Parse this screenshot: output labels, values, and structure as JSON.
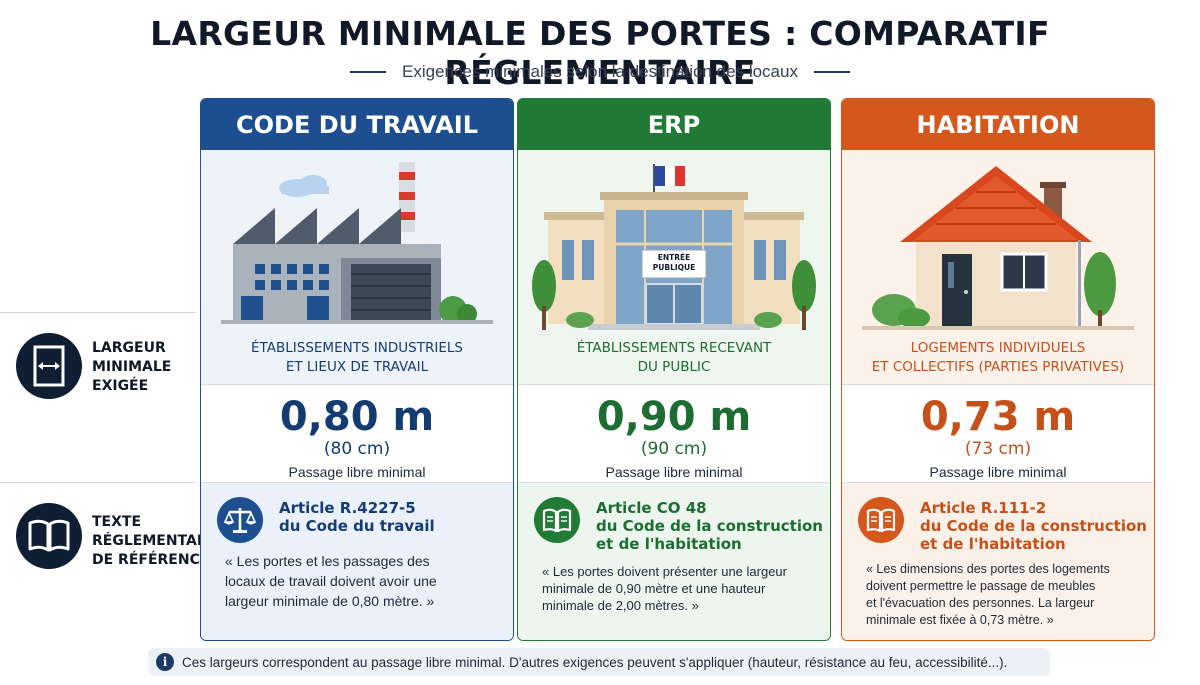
{
  "header": {
    "title": "LARGEUR MINIMALE DES PORTES : COMPARATIF RÉGLEMENTAIRE",
    "subtitle": "Exigences minimales selon la destination des locaux"
  },
  "side": {
    "width_label": "LARGEUR\nMINIMALE\nEXIGÉE",
    "text_label": "TEXTE\nRÉGLEMENTAIRE\nDE RÉFÉRENCE"
  },
  "columns": [
    {
      "header": "CODE DU TRAVAIL",
      "type": "ÉTABLISSEMENTS INDUSTRIELS\nET LIEUX DE TRAVAIL",
      "value": "0,80 m",
      "value_cm": "(80 cm)",
      "passage": "Passage libre minimal",
      "article": "Article R.4227-5\ndu Code du travail",
      "quote": "« Les portes et les passages des\nlocaux de travail doivent avoir une\nlargeur minimale de 0,80 mètre. »",
      "color": "#1d4e8f"
    },
    {
      "header": "ERP",
      "type": "ÉTABLISSEMENTS RECEVANT\nDU PUBLIC",
      "sign": "ENTRÉE\nPUBLIQUE",
      "value": "0,90 m",
      "value_cm": "(90 cm)",
      "passage": "Passage libre minimal",
      "article": "Article CO 48\ndu Code de la construction\net de l'habitation",
      "quote": "« Les portes doivent présenter une largeur\nminimale de 0,90 mètre et une hauteur\nminimale de 2,00 mètres. »",
      "color": "#217a36"
    },
    {
      "header": "HABITATION",
      "type": "LOGEMENTS INDIVIDUELS\nET COLLECTIFS (PARTIES PRIVATIVES)",
      "value": "0,73 m",
      "value_cm": "(73 cm)",
      "passage": "Passage libre minimal",
      "article": "Article R.111-2\ndu Code de la construction\net de l'habitation",
      "quote": "« Les dimensions des portes des logements\ndoivent permettre le passage de meubles\net l'évacuation des personnes. La largeur\nminimale est fixée à 0,73 mètre. »",
      "color": "#d4581c"
    }
  ],
  "footer": {
    "note": "Ces largeurs correspondent au passage libre minimal. D'autres exigences peuvent s'appliquer (hauteur, résistance au feu, accessibilité...).",
    "icon": "info-icon"
  }
}
